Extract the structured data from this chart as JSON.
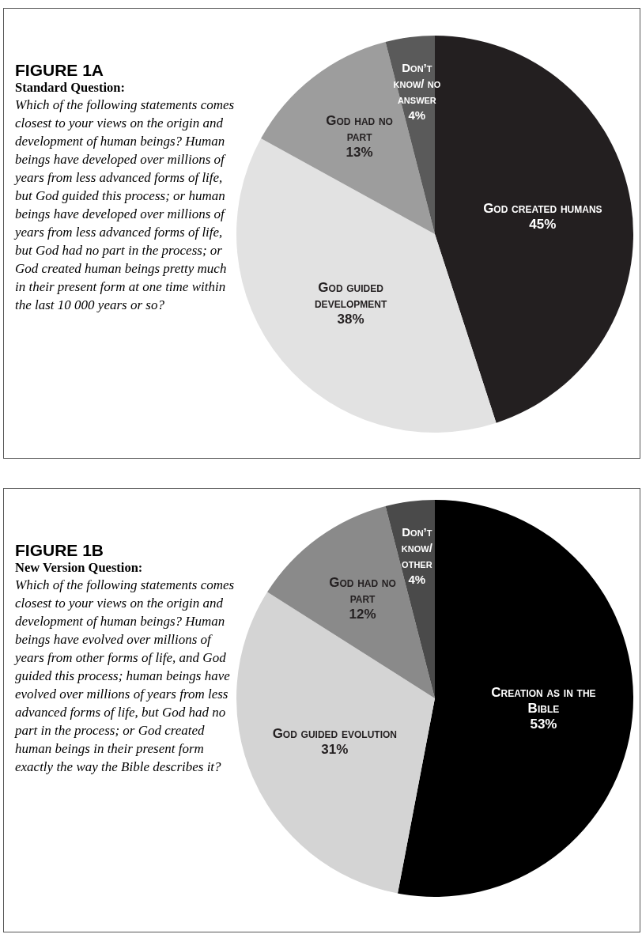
{
  "chart_data": [
    {
      "type": "pie",
      "title": "FIGURE 1A",
      "subtitle": "Standard Question:",
      "annotations": [
        "Which of the following statements comes closest to your views on the origin and development of human beings? Human beings have developed over millions of years from less advanced forms of life, but God guided this process; or human beings have developed over millions of years from less advanced forms of life, but God had no part in the process; or God created human beings pretty much in their present form at one time within the last 10  000 years or so?"
      ],
      "categories": [
        "God created humans",
        "God guided development",
        "God had no part",
        "Don’t know/ no answer"
      ],
      "values": [
        45,
        38,
        13,
        4
      ],
      "colors": [
        "#231f20",
        "#e2e2e2",
        "#9d9d9d",
        "#5a5a5a"
      ],
      "value_labels": [
        "45%",
        "38%",
        "13%",
        "4%"
      ]
    },
    {
      "type": "pie",
      "title": "FIGURE 1B",
      "subtitle": "New Version Question:",
      "annotations": [
        "Which of the following statements comes closest to your views on the origin and development of human beings? Human beings have evolved over millions of years from other forms of life, and God guided this process; human beings have evolved over millions of years from less advanced forms of life, but God had no part in the process; or God created human beings in their present form exactly the way the Bible describes it?"
      ],
      "categories": [
        "Creation as in the Bible",
        "God guided evolution",
        "God had no part",
        "Don’t know/ other"
      ],
      "values": [
        53,
        31,
        12,
        4
      ],
      "colors": [
        "#000000",
        "#d4d4d4",
        "#8a8a8a",
        "#4a4a4a"
      ],
      "value_labels": [
        "53%",
        "31%",
        "12%",
        "4%"
      ]
    }
  ]
}
